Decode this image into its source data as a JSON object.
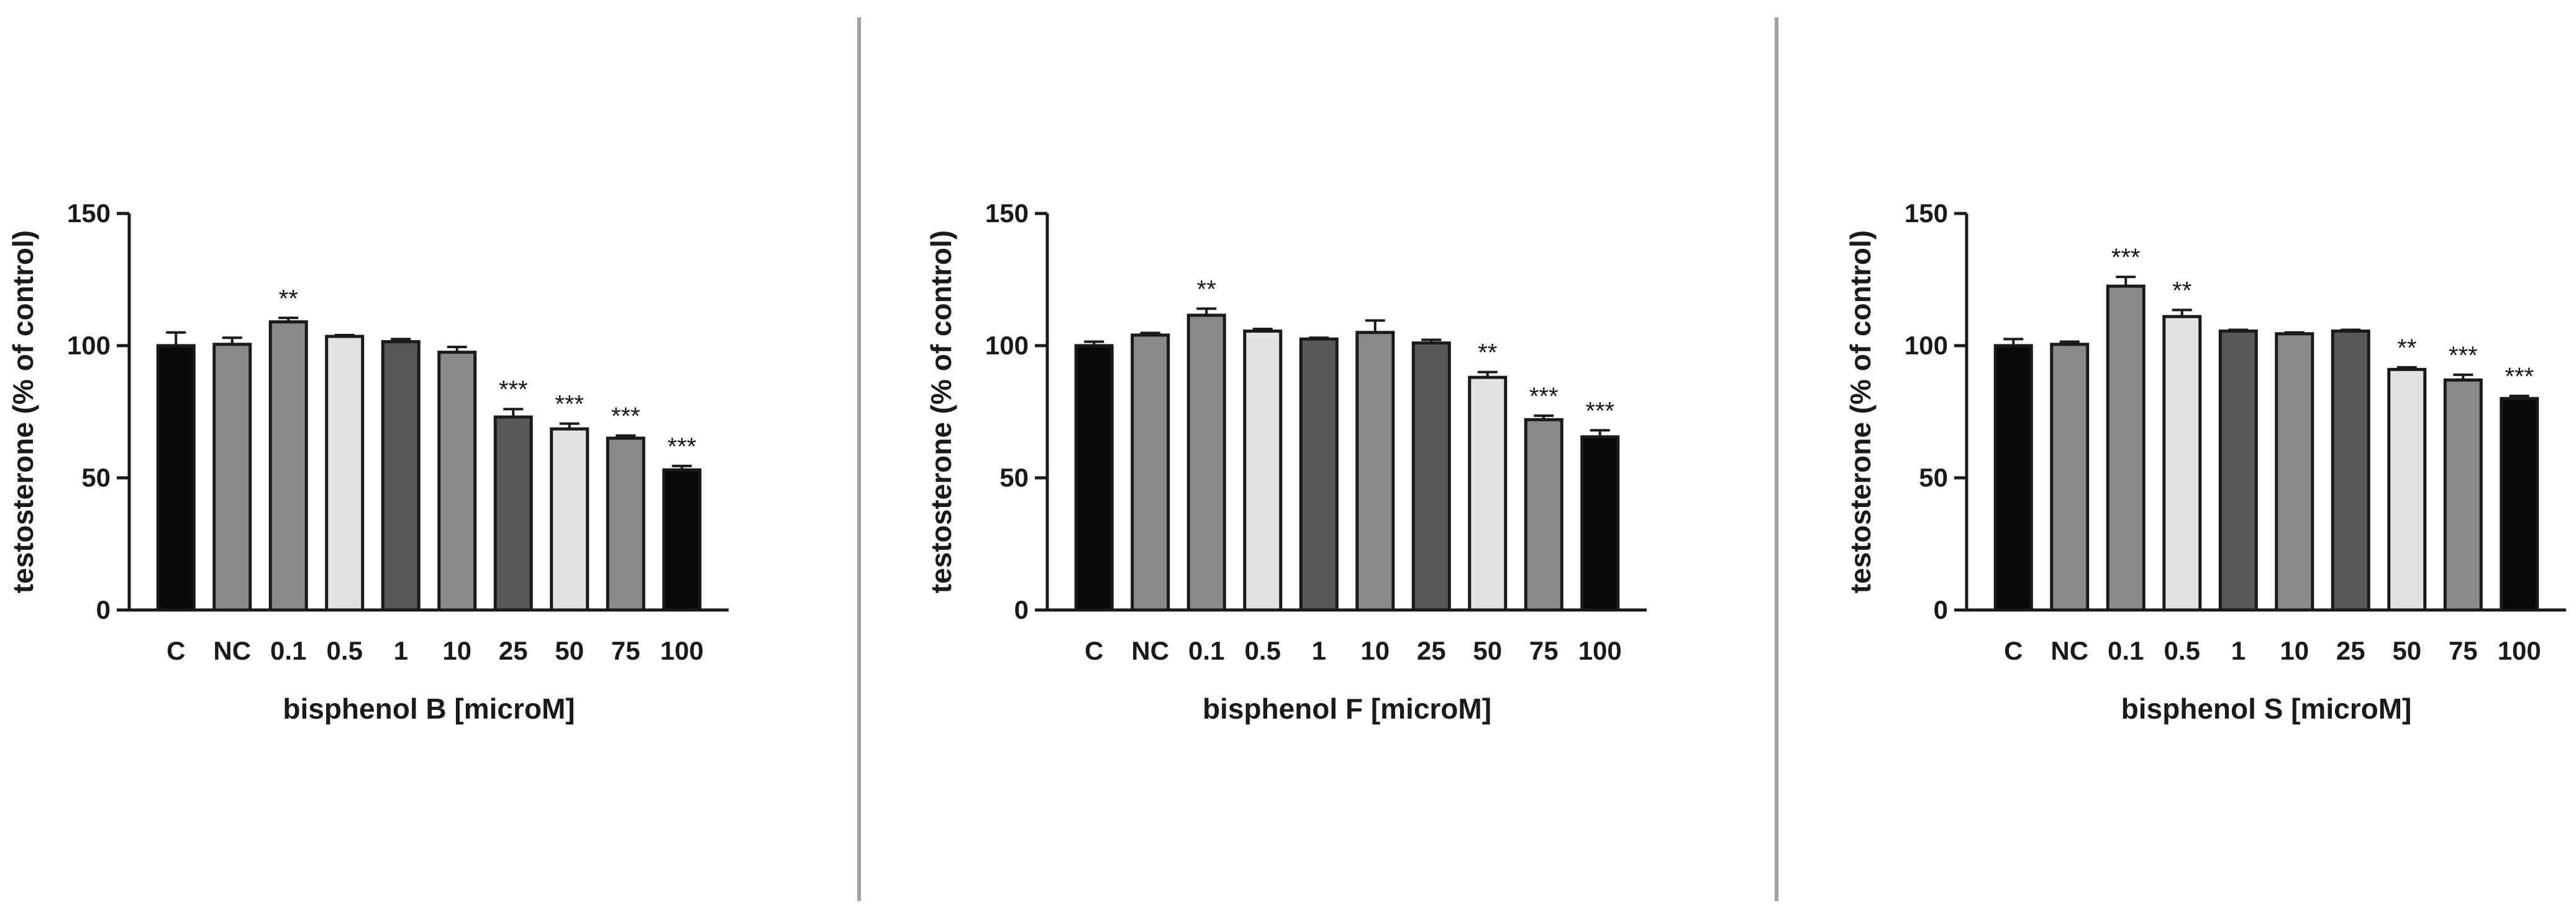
{
  "colors": {
    "black": "#0a0a0a",
    "dark_gray": "#585858",
    "mid_gray": "#8a8a8a",
    "light_gray": "#e2e2e2",
    "divider": "#a0a0a0",
    "axis": "#1a1a1a"
  },
  "chart_data": [
    {
      "type": "bar",
      "title": "",
      "xlabel": "bisphenol B [microM]",
      "ylabel": "testosterone (% of control)",
      "ylim": [
        0,
        150
      ],
      "yticks": [
        0,
        50,
        100,
        150
      ],
      "grid": false,
      "categories": [
        "C",
        "NC",
        "0.1",
        "0.5",
        "1",
        "10",
        "25",
        "50",
        "75",
        "100"
      ],
      "values": [
        100,
        100.5,
        109,
        103.5,
        101.5,
        97.5,
        73,
        68.5,
        65,
        53
      ],
      "errors": [
        5,
        2.5,
        1.5,
        0.5,
        1,
        2,
        3,
        2,
        1,
        1.5
      ],
      "significance": [
        "",
        "",
        "**",
        "",
        "",
        "",
        "***",
        "***",
        "***",
        "***"
      ],
      "bar_colors": [
        "black",
        "mid_gray",
        "mid_gray",
        "light_gray",
        "dark_gray",
        "mid_gray",
        "dark_gray",
        "light_gray",
        "mid_gray",
        "black"
      ]
    },
    {
      "type": "bar",
      "title": "",
      "xlabel": "bisphenol F [microM]",
      "ylabel": "testosterone (% of control)",
      "ylim": [
        0,
        150
      ],
      "yticks": [
        0,
        50,
        100,
        150
      ],
      "grid": false,
      "categories": [
        "C",
        "NC",
        "0.1",
        "0.5",
        "1",
        "10",
        "25",
        "50",
        "75",
        "100"
      ],
      "values": [
        100,
        104,
        111.5,
        105.5,
        102.5,
        105,
        101,
        88,
        72,
        65.5
      ],
      "errors": [
        1.5,
        0.8,
        2.5,
        0.8,
        0.5,
        4.5,
        1.2,
        2,
        1.5,
        2.5
      ],
      "significance": [
        "",
        "",
        "**",
        "",
        "",
        "",
        "",
        "**",
        "***",
        "***"
      ],
      "bar_colors": [
        "black",
        "mid_gray",
        "mid_gray",
        "light_gray",
        "dark_gray",
        "mid_gray",
        "dark_gray",
        "light_gray",
        "mid_gray",
        "black"
      ]
    },
    {
      "type": "bar",
      "title": "",
      "xlabel": "bisphenol S [microM]",
      "ylabel": "testosterone (% of control)",
      "ylim": [
        0,
        150
      ],
      "yticks": [
        0,
        50,
        100,
        150
      ],
      "grid": false,
      "categories": [
        "C",
        "NC",
        "0.1",
        "0.5",
        "1",
        "10",
        "25",
        "50",
        "75",
        "100"
      ],
      "values": [
        100,
        100.5,
        122.5,
        111,
        105.5,
        104.5,
        105.5,
        91,
        87,
        80
      ],
      "errors": [
        2.5,
        1,
        3.5,
        2.5,
        0.5,
        0.5,
        0.5,
        0.8,
        2,
        1
      ],
      "significance": [
        "",
        "",
        "***",
        "**",
        "",
        "",
        "",
        "**",
        "***",
        "***"
      ],
      "bar_colors": [
        "black",
        "mid_gray",
        "mid_gray",
        "light_gray",
        "dark_gray",
        "mid_gray",
        "dark_gray",
        "light_gray",
        "mid_gray",
        "black"
      ]
    }
  ]
}
